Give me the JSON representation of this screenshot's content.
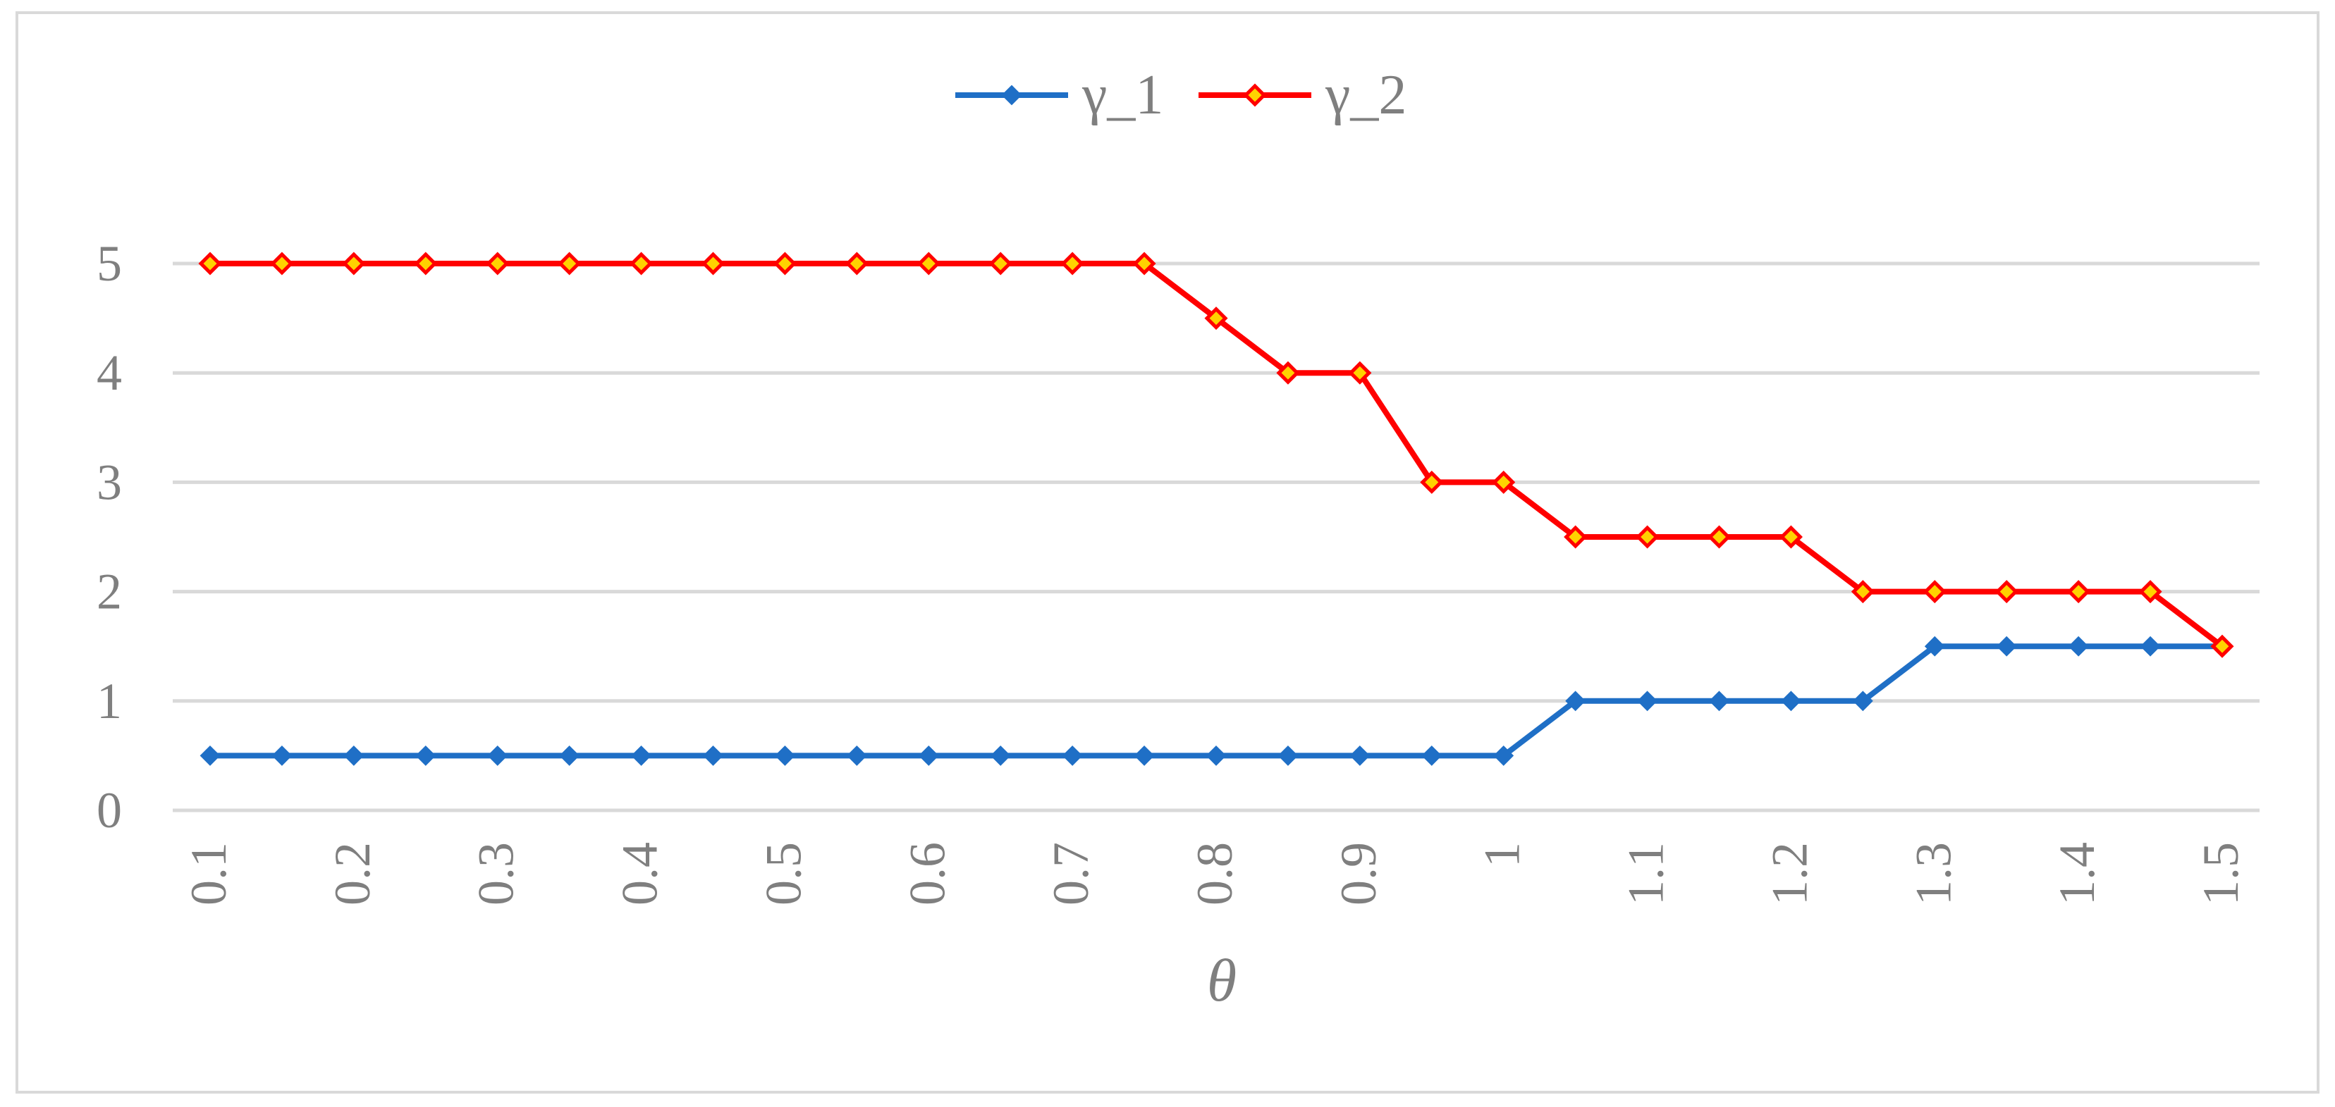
{
  "chart_data": {
    "type": "line",
    "title": "",
    "xlabel": "θ",
    "ylabel": "",
    "x": [
      0.1,
      0.15,
      0.2,
      0.25,
      0.3,
      0.35,
      0.4,
      0.45,
      0.5,
      0.55,
      0.6,
      0.65,
      0.7,
      0.75,
      0.8,
      0.85,
      0.9,
      0.95,
      1,
      1.05,
      1.1,
      1.15,
      1.2,
      1.25,
      1.3,
      1.35,
      1.4,
      1.45,
      1.5
    ],
    "x_tick_labels": [
      "0.1",
      "0.2",
      "0.3",
      "0.4",
      "0.5",
      "0.6",
      "0.7",
      "0.8",
      "0.9",
      "1",
      "1.1",
      "1.2",
      "1.3",
      "1.4",
      "1.5"
    ],
    "y_tick_labels": [
      "0",
      "1",
      "2",
      "3",
      "4",
      "5"
    ],
    "ylim": [
      0,
      5
    ],
    "grid": true,
    "legend_position": "top-center",
    "series": [
      {
        "name": "γ_1",
        "color": "#1f6fc6",
        "marker": "diamond",
        "values": [
          0.5,
          0.5,
          0.5,
          0.5,
          0.5,
          0.5,
          0.5,
          0.5,
          0.5,
          0.5,
          0.5,
          0.5,
          0.5,
          0.5,
          0.5,
          0.5,
          0.5,
          0.5,
          0.5,
          1,
          1,
          1,
          1,
          1,
          1.5,
          1.5,
          1.5,
          1.5,
          1.5
        ]
      },
      {
        "name": "γ_2",
        "color": "#ff0000",
        "marker": "diamond",
        "values": [
          5,
          5,
          5,
          5,
          5,
          5,
          5,
          5,
          5,
          5,
          5,
          5,
          5,
          5,
          4.5,
          4,
          4,
          3,
          3,
          2.5,
          2.5,
          2.5,
          2.5,
          2,
          2,
          2,
          2,
          2,
          1.5
        ]
      }
    ]
  }
}
